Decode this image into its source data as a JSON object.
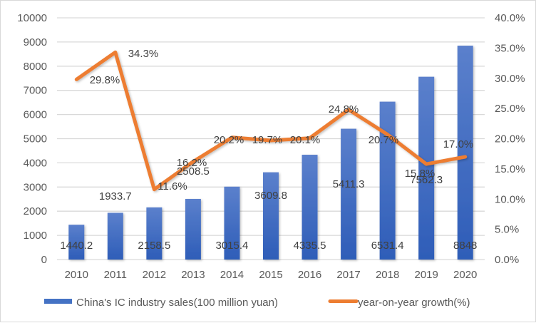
{
  "chart_data": {
    "type": "bar",
    "title": "",
    "xlabel": "",
    "categories": [
      "2010",
      "2011",
      "2012",
      "2013",
      "2014",
      "2015",
      "2016",
      "2017",
      "2018",
      "2019",
      "2020"
    ],
    "series": [
      {
        "name": "China's IC industry sales(100 million yuan)",
        "type": "bar",
        "axis": "left",
        "color": "#4472C4",
        "values": [
          1440.2,
          1933.7,
          2158.5,
          2508.5,
          3015.4,
          3609.8,
          4335.5,
          5411.3,
          6531.4,
          7562.3,
          8848
        ],
        "labels": [
          "1440.2",
          "1933.7",
          "2158.5",
          "2508.5",
          "3015.4",
          "3609.8",
          "4335.5",
          "5411.3",
          "6531.4",
          "7562.3",
          "8848"
        ]
      },
      {
        "name": "year-on-year growth(%)",
        "type": "line",
        "axis": "right",
        "color": "#ED7D31",
        "values": [
          29.8,
          34.3,
          11.6,
          16.2,
          20.2,
          19.7,
          20.1,
          24.8,
          20.7,
          15.8,
          17.0
        ],
        "labels": [
          "29.8%",
          "34.3%",
          "11.6%",
          "16.2%",
          "20.2%",
          "19.7%",
          "20.1%",
          "24.8%",
          "20.7%",
          "15.8%",
          "17.0%"
        ]
      }
    ],
    "y_left": {
      "range": [
        0,
        10000
      ],
      "ticks": [
        "0",
        "1000",
        "2000",
        "3000",
        "4000",
        "5000",
        "6000",
        "7000",
        "8000",
        "9000",
        "10000"
      ]
    },
    "y_right": {
      "range": [
        0,
        40
      ],
      "ticks": [
        "0.0%",
        "5.0%",
        "10.0%",
        "15.0%",
        "20.0%",
        "25.0%",
        "30.0%",
        "35.0%",
        "40.0%"
      ]
    },
    "grid": true,
    "legend": {
      "position": "bottom",
      "entries": [
        "China's IC industry sales(100 million yuan)",
        "year-on-year growth(%)"
      ]
    }
  }
}
